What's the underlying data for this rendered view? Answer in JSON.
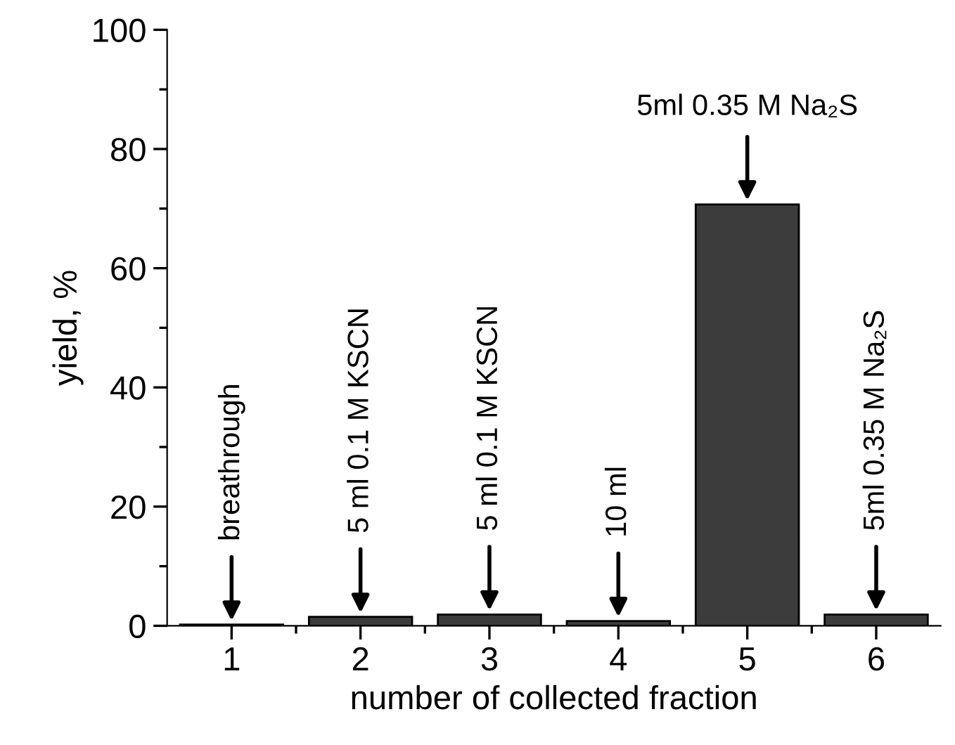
{
  "chart_data": {
    "type": "bar",
    "xlabel": "number of collected fraction",
    "ylabel": "yield, %",
    "categories": [
      "1",
      "2",
      "3",
      "4",
      "5",
      "6"
    ],
    "values": [
      0.2,
      1.5,
      1.9,
      0.8,
      70.7,
      1.9
    ],
    "color": "#3c3c3c",
    "ylim": [
      0,
      100
    ],
    "yticks": [
      0,
      20,
      40,
      60,
      80,
      100
    ],
    "grid": false,
    "annotations": [
      {
        "text": "breathrough",
        "x": "1",
        "y": 0.2
      },
      {
        "text": "5 ml 0.1 M KSCN",
        "x": "2",
        "y": 1.5
      },
      {
        "text": "5 ml 0.1 M KSCN",
        "x": "3",
        "y": 1.9
      },
      {
        "text": "10 ml",
        "x": "4",
        "y": 0.8
      },
      {
        "text": "5ml 0.35 M Na₂S",
        "x": "5",
        "y": 70.7
      },
      {
        "text": "5ml 0.35 M Na₂S",
        "x": "6",
        "y": 1.9
      }
    ]
  }
}
